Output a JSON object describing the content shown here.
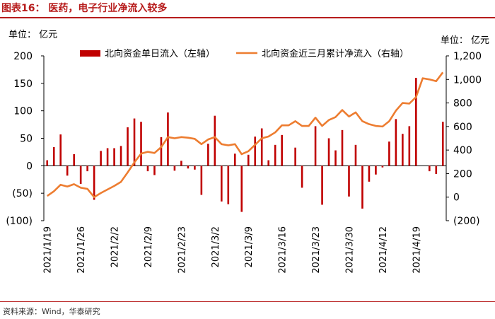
{
  "header": {
    "title": "图表16： 医药，电子行业净流入较多",
    "unit_left": "单位： 亿元",
    "unit_right": "单位： 亿元"
  },
  "footer": {
    "source": "资料来源：Wind，华泰研究"
  },
  "colors": {
    "bar": "#c00000",
    "line": "#ed7d31",
    "accent": "#b71c1c"
  },
  "chart_data": {
    "type": "bar+line",
    "title": "医药，电子行业净流入较多",
    "x_tick_labels": [
      "2021/1/19",
      "2021/1/26",
      "2021/2/2",
      "2021/2/9",
      "2021/2/23",
      "2021/3/2",
      "2021/3/9",
      "2021/3/16",
      "2021/3/23",
      "2021/3/30",
      "2021/4/12",
      "2021/4/19"
    ],
    "x_tick_indices": [
      0,
      5,
      10,
      15,
      20,
      25,
      30,
      35,
      40,
      45,
      50,
      55
    ],
    "left_axis": {
      "min": -100,
      "max": 200,
      "ticks": [
        200,
        150,
        100,
        50,
        0,
        -50,
        -100
      ],
      "tick_labels": [
        "200",
        "150",
        "100",
        "50",
        "0",
        "(50)",
        "(100)"
      ]
    },
    "right_axis": {
      "min": -200,
      "max": 1200,
      "ticks": [
        1200,
        1000,
        800,
        600,
        400,
        200,
        0,
        -200
      ],
      "tick_labels": [
        "1,200",
        "1,000",
        "800",
        "600",
        "400",
        "200",
        "0",
        "(200)"
      ]
    },
    "series": [
      {
        "name": "北向资金单日流入（左轴）",
        "axis": "left",
        "type": "bar",
        "values": [
          10,
          34,
          57,
          -18,
          21,
          -33,
          -10,
          -62,
          27,
          32,
          32,
          36,
          70,
          86,
          80,
          -10,
          -17,
          52,
          97,
          -9,
          9,
          -5,
          -7,
          -53,
          40,
          91,
          -65,
          -70,
          22,
          -84,
          20,
          53,
          68,
          10,
          38,
          56,
          0,
          33,
          -40,
          0,
          72,
          -71,
          50,
          28,
          65,
          -56,
          38,
          -78,
          -29,
          -16,
          -3,
          44,
          85,
          58,
          72,
          160,
          0,
          -10,
          -15,
          80
        ]
      },
      {
        "name": "北向资金近三月累计净流入（右轴）",
        "axis": "right",
        "type": "line",
        "values": [
          10,
          50,
          105,
          90,
          110,
          80,
          70,
          0,
          35,
          65,
          95,
          130,
          210,
          295,
          370,
          385,
          375,
          425,
          510,
          500,
          510,
          505,
          495,
          450,
          490,
          510,
          450,
          440,
          450,
          365,
          390,
          445,
          500,
          515,
          550,
          610,
          610,
          645,
          605,
          605,
          675,
          605,
          655,
          680,
          740,
          685,
          720,
          645,
          620,
          605,
          600,
          645,
          735,
          800,
          795,
          850,
          1010,
          1000,
          985,
          1060
        ]
      }
    ]
  }
}
